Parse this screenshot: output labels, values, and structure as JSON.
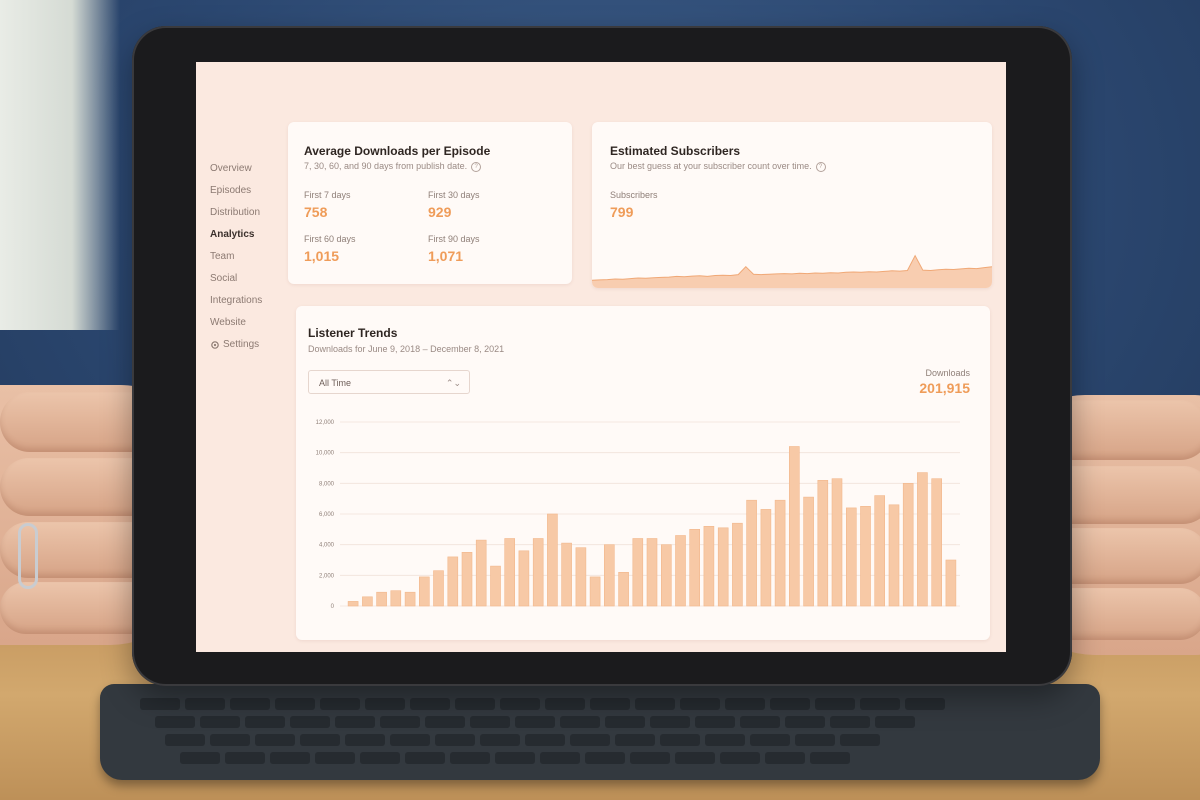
{
  "sidebar": {
    "items": [
      {
        "label": "Overview",
        "active": false,
        "icon": ""
      },
      {
        "label": "Episodes",
        "active": false,
        "icon": ""
      },
      {
        "label": "Distribution",
        "active": false,
        "icon": ""
      },
      {
        "label": "Analytics",
        "active": true,
        "icon": ""
      },
      {
        "label": "Team",
        "active": false,
        "icon": ""
      },
      {
        "label": "Social",
        "active": false,
        "icon": ""
      },
      {
        "label": "Integrations",
        "active": false,
        "icon": ""
      },
      {
        "label": "Website",
        "active": false,
        "icon": ""
      },
      {
        "label": "Settings",
        "active": false,
        "icon": "gear-icon"
      }
    ]
  },
  "downloads_card": {
    "title": "Average Downloads per Episode",
    "subtitle": "7, 30, 60, and 90 days from publish date.",
    "metrics": [
      {
        "label": "First 7 days",
        "value": "758"
      },
      {
        "label": "First 30 days",
        "value": "929"
      },
      {
        "label": "First 60 days",
        "value": "1,015"
      },
      {
        "label": "First 90 days",
        "value": "1,071"
      }
    ]
  },
  "subscribers_card": {
    "title": "Estimated Subscribers",
    "subtitle": "Our best guess at your subscriber count over time.",
    "label": "Subscribers",
    "value": "799"
  },
  "trends_card": {
    "title": "Listener Trends",
    "subtitle": "Downloads for June 9, 2018 – December 8, 2021",
    "range_select": "All Time",
    "downloads_label": "Downloads",
    "downloads_value": "201,915"
  },
  "colors": {
    "accent": "#ef9c59",
    "bar": "#f7c9a6",
    "bar_stroke": "#f2b88d",
    "screen_bg": "#fbe9e0"
  },
  "chart_data": {
    "type": "bar",
    "ylim": [
      0,
      12000
    ],
    "yticks": [
      "0",
      "2,000",
      "4,000",
      "6,000",
      "8,000",
      "10,000",
      "12,000"
    ],
    "ytick_values": [
      0,
      2000,
      4000,
      6000,
      8000,
      10000,
      12000
    ],
    "grid": true,
    "values": [
      300,
      600,
      900,
      1000,
      900,
      1900,
      2300,
      3200,
      3500,
      4300,
      2600,
      4400,
      3600,
      4400,
      6000,
      4100,
      3800,
      1900,
      4000,
      2200,
      4400,
      4400,
      4000,
      4600,
      5000,
      5200,
      5100,
      5400,
      6900,
      6300,
      6900,
      10400,
      7100,
      8200,
      8300,
      6400,
      6500,
      7200,
      6600,
      8000,
      8700,
      8300,
      3000
    ]
  },
  "subscriber_sparkline": {
    "type": "area",
    "values": [
      0.12,
      0.13,
      0.14,
      0.16,
      0.15,
      0.17,
      0.19,
      0.18,
      0.2,
      0.21,
      0.22,
      0.24,
      0.23,
      0.25,
      0.26,
      0.24,
      0.27,
      0.28,
      0.27,
      0.3,
      0.55,
      0.31,
      0.3,
      0.31,
      0.32,
      0.33,
      0.32,
      0.34,
      0.33,
      0.35,
      0.34,
      0.36,
      0.35,
      0.37,
      0.38,
      0.37,
      0.39,
      0.38,
      0.4,
      0.42,
      0.41,
      0.43,
      0.9,
      0.44,
      0.43,
      0.45,
      0.47,
      0.46,
      0.48,
      0.5,
      0.49,
      0.52,
      0.55
    ]
  }
}
